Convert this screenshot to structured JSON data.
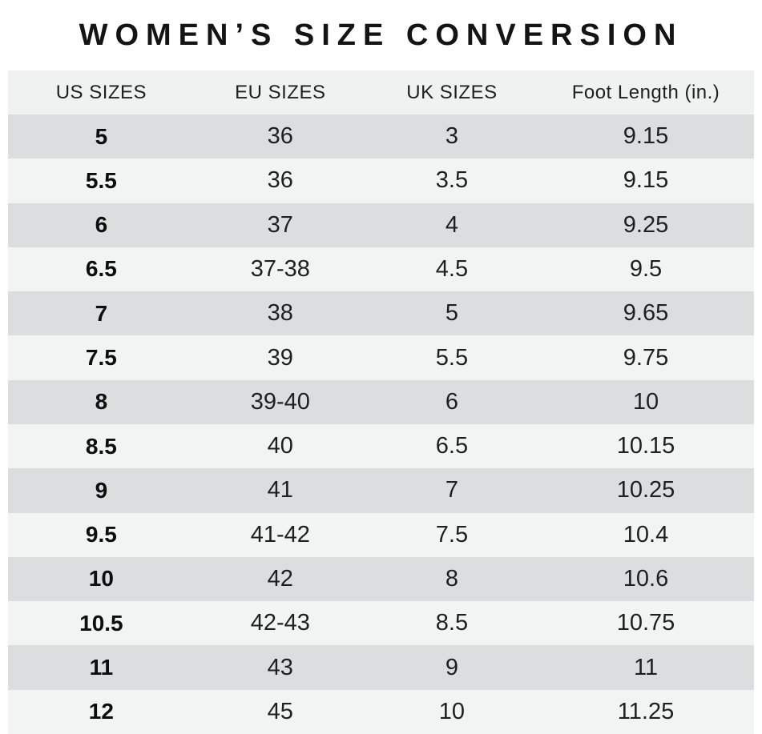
{
  "title": "WOMEN’S SIZE CONVERSION",
  "chart_data": {
    "type": "table",
    "title": "WOMEN’S SIZE CONVERSION",
    "columns": [
      "US SIZES",
      "EU SIZES",
      "UK SIZES",
      "Foot Length (in.)"
    ],
    "rows": [
      [
        "5",
        "36",
        "3",
        "9.15"
      ],
      [
        "5.5",
        "36",
        "3.5",
        "9.15"
      ],
      [
        "6",
        "37",
        "4",
        "9.25"
      ],
      [
        "6.5",
        "37-38",
        "4.5",
        "9.5"
      ],
      [
        "7",
        "38",
        "5",
        "9.65"
      ],
      [
        "7.5",
        "39",
        "5.5",
        "9.75"
      ],
      [
        "8",
        "39-40",
        "6",
        "10"
      ],
      [
        "8.5",
        "40",
        "6.5",
        "10.15"
      ],
      [
        "9",
        "41",
        "7",
        "10.25"
      ],
      [
        "9.5",
        "41-42",
        "7.5",
        "10.4"
      ],
      [
        "10",
        "42",
        "8",
        "10.6"
      ],
      [
        "10.5",
        "42-43",
        "8.5",
        "10.75"
      ],
      [
        "11",
        "43",
        "9",
        "11"
      ],
      [
        "12",
        "45",
        "10",
        "11.25"
      ]
    ],
    "layout": {
      "row_striping": "alternating, first data row dark",
      "alignment": "center",
      "first_column_bold": true
    }
  },
  "colors": {
    "background": "#ffffff",
    "header_bg": "#f0f1f1",
    "row_dark": "#dcddde",
    "row_light": "#f2f3f3",
    "title_color": "#141414",
    "text_color": "#1f1f1f"
  }
}
